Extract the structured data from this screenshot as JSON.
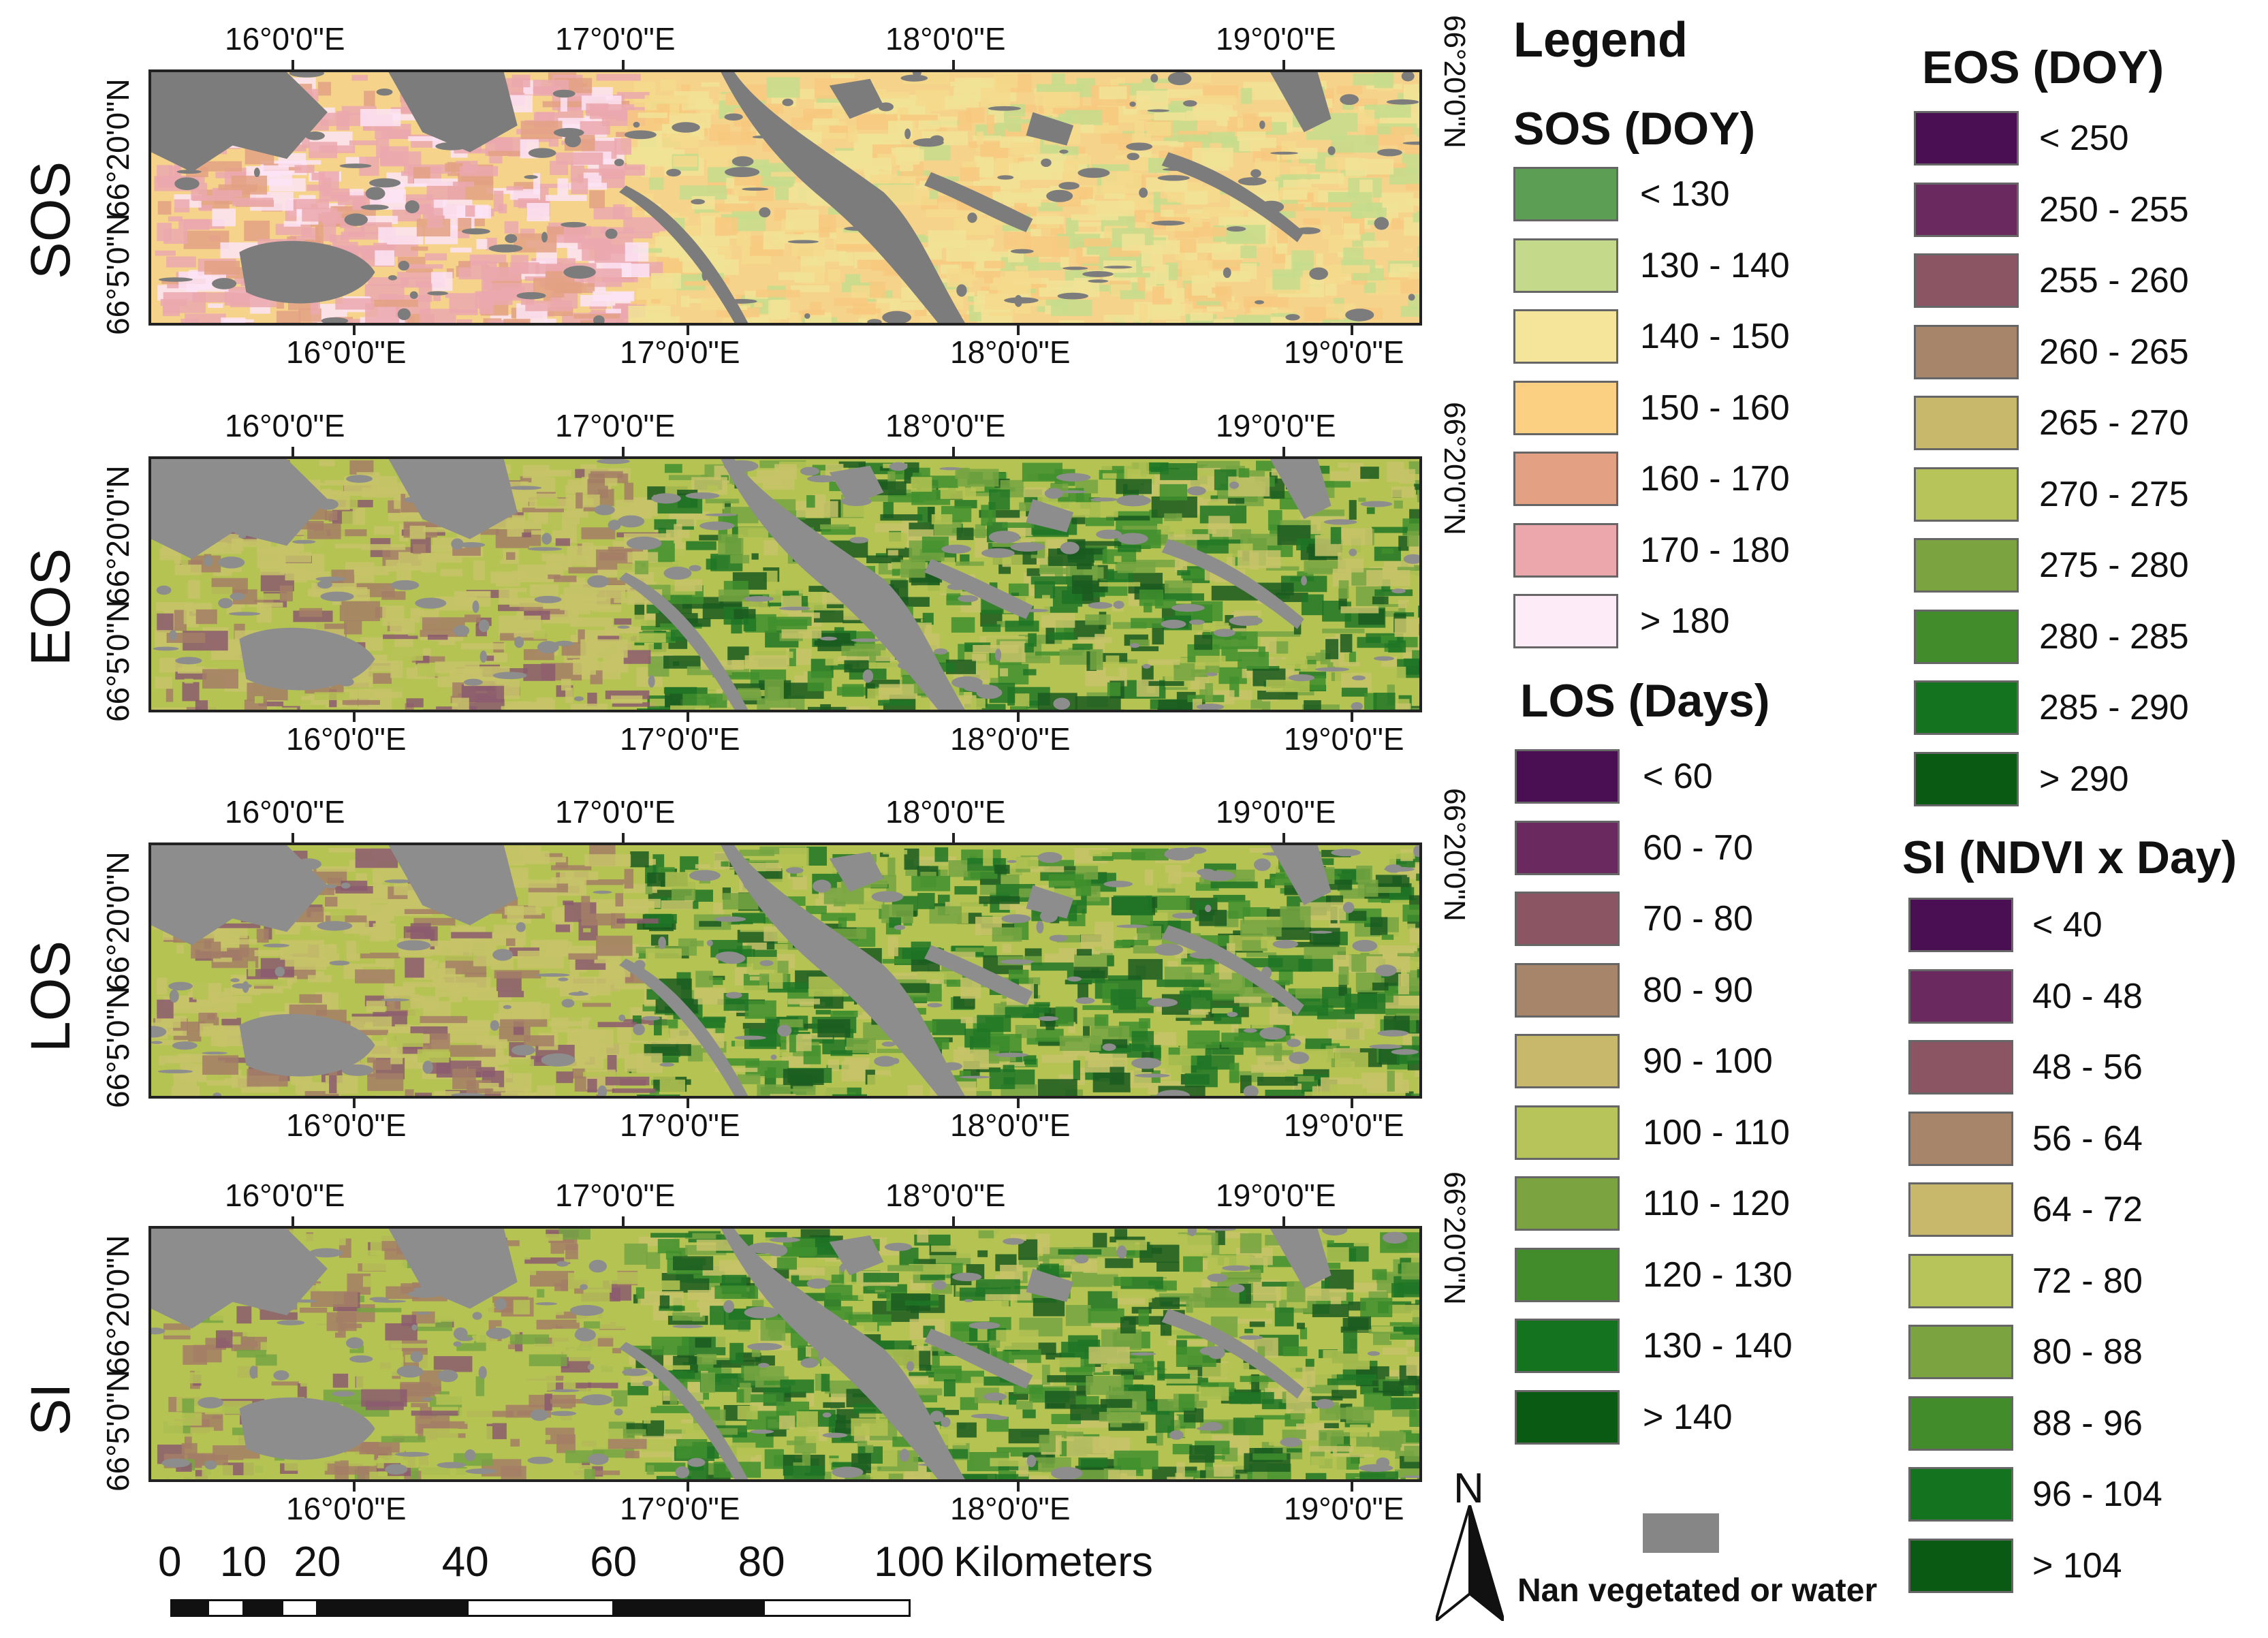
{
  "rows": [
    {
      "label": "SOS",
      "palette": [
        "#f4d98c",
        "#f7c97f",
        "#e3a184",
        "#eba8ae",
        "#f1e397",
        "#c6dc8c",
        "#fbe4f6"
      ]
    },
    {
      "label": "EOS",
      "palette": [
        "#c7c36a",
        "#b5c353",
        "#76a442",
        "#3f8f2e",
        "#1f7626",
        "#1a5a20",
        "#a37e66",
        "#8b5a6f"
      ]
    },
    {
      "label": "LOS",
      "palette": [
        "#c7c36a",
        "#b5c353",
        "#76a442",
        "#3f8f2e",
        "#1f7626",
        "#1a5a20",
        "#a37e66",
        "#8b5a6f"
      ]
    },
    {
      "label": "SI",
      "palette": [
        "#b5c353",
        "#76a442",
        "#3f8f2e",
        "#1f7626",
        "#c7c36a",
        "#1a5a20",
        "#a37e66",
        "#8b5a6f"
      ]
    }
  ],
  "lon_labels": [
    "16°0'0\"E",
    "17°0'0\"E",
    "18°0'0\"E",
    "19°0'0\"E"
  ],
  "lat_labels": [
    "66°20'0\"N",
    "66°5'0\"N"
  ],
  "legend": {
    "title": "Legend",
    "sos": {
      "title": "SOS (DOY)",
      "items": [
        {
          "label": "< 130",
          "color": "#5d9e55"
        },
        {
          "label": "130 - 140",
          "color": "#c4d98a"
        },
        {
          "label": "140 - 150",
          "color": "#f5e59a"
        },
        {
          "label": "150 - 160",
          "color": "#fcd083"
        },
        {
          "label": "160 - 170",
          "color": "#e4a083"
        },
        {
          "label": "170 - 180",
          "color": "#eca7ac"
        },
        {
          "label": "> 180",
          "color": "#fdecf8"
        }
      ]
    },
    "los": {
      "title": "LOS (Days)",
      "items": [
        {
          "label": "< 60",
          "color": "#4a0f53"
        },
        {
          "label": "60 - 70",
          "color": "#6a2a60"
        },
        {
          "label": "70 - 80",
          "color": "#8c5563"
        },
        {
          "label": "80 - 90",
          "color": "#a6856a"
        },
        {
          "label": "90 - 100",
          "color": "#c7b86c"
        },
        {
          "label": "100 - 110",
          "color": "#b7c45a"
        },
        {
          "label": "110 - 120",
          "color": "#7ba441"
        },
        {
          "label": "120 - 130",
          "color": "#438c2c"
        },
        {
          "label": "130 - 140",
          "color": "#14731f"
        },
        {
          "label": "> 140",
          "color": "#0b5a13"
        }
      ]
    },
    "eos": {
      "title": "EOS (DOY)",
      "items": [
        {
          "label": "< 250",
          "color": "#4a0f53"
        },
        {
          "label": "250 - 255",
          "color": "#6a2a60"
        },
        {
          "label": "255 - 260",
          "color": "#8c5563"
        },
        {
          "label": "260 - 265",
          "color": "#a6856a"
        },
        {
          "label": "265 - 270",
          "color": "#c7b86c"
        },
        {
          "label": "270 - 275",
          "color": "#b7c45a"
        },
        {
          "label": "275 - 280",
          "color": "#7ba441"
        },
        {
          "label": "280 - 285",
          "color": "#438c2c"
        },
        {
          "label": "285 - 290",
          "color": "#14731f"
        },
        {
          "label": "> 290",
          "color": "#0b5a13"
        }
      ]
    },
    "si": {
      "title": "SI (NDVI x Day)",
      "items": [
        {
          "label": "< 40",
          "color": "#4a0f53"
        },
        {
          "label": "40 - 48",
          "color": "#6a2a60"
        },
        {
          "label": "48 - 56",
          "color": "#8c5563"
        },
        {
          "label": "56 - 64",
          "color": "#a6856a"
        },
        {
          "label": "64 - 72",
          "color": "#c7b86c"
        },
        {
          "label": "72 - 80",
          "color": "#b7c45a"
        },
        {
          "label": "80 - 88",
          "color": "#7ba441"
        },
        {
          "label": "88 - 96",
          "color": "#438c2c"
        },
        {
          "label": "96 - 104",
          "color": "#14731f"
        },
        {
          "label": "> 104",
          "color": "#0b5a13"
        }
      ]
    },
    "nan": {
      "label": "Nan vegetated or water",
      "color": "#868686"
    }
  },
  "scale_bar": {
    "ticks": [
      "0",
      "10",
      "20",
      "40",
      "60",
      "80",
      "100"
    ],
    "unit": "Kilometers"
  },
  "north_arrow": {
    "label": "N"
  },
  "colors": {
    "water": "#808080"
  }
}
